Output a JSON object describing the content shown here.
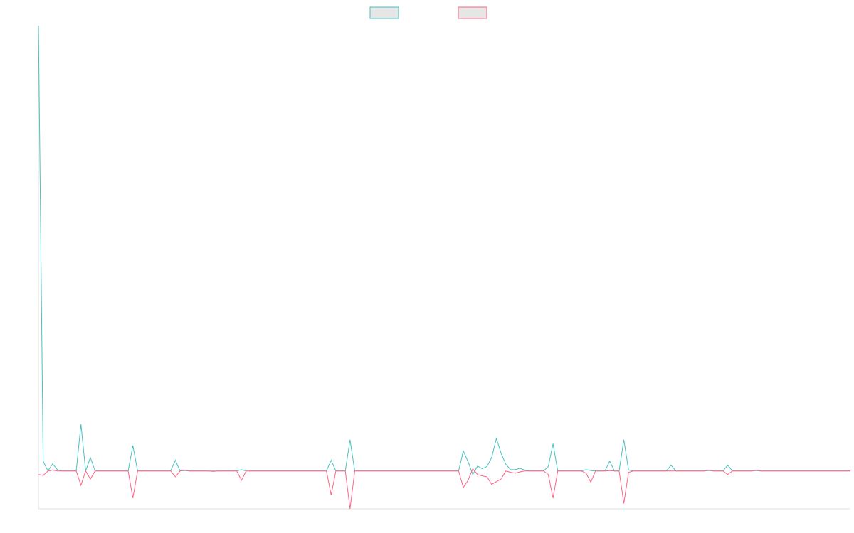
{
  "chart_data": {
    "type": "line",
    "legend": "top",
    "ylim": [
      -8.5,
      100
    ],
    "categories": [
      null,
      null,
      null,
      null,
      null,
      null,
      null,
      null,
      null,
      null,
      null,
      null,
      null,
      null,
      null,
      null,
      null,
      null,
      null,
      null,
      null,
      null,
      null,
      null,
      null,
      null,
      null,
      null,
      null,
      null,
      null,
      null,
      null,
      null,
      null,
      null,
      null,
      null,
      null,
      null,
      null,
      null,
      null,
      null,
      null,
      null,
      null,
      null,
      null,
      null,
      null,
      null,
      null,
      null,
      null,
      null,
      null,
      null,
      null,
      null,
      null,
      null,
      null,
      null,
      null,
      null,
      null,
      null,
      null,
      null,
      null,
      null,
      null,
      null,
      null,
      null,
      null,
      null,
      null,
      null,
      null,
      null,
      null,
      null,
      null,
      null,
      null,
      null,
      null,
      null,
      null,
      null,
      null,
      null,
      null,
      null,
      null,
      null,
      null,
      null,
      null,
      null,
      null,
      null,
      null,
      null,
      null,
      null,
      null,
      null,
      null,
      null,
      null,
      null,
      null,
      null,
      null,
      null,
      null,
      null,
      null,
      null,
      null,
      null,
      null,
      null,
      null,
      null,
      null,
      null,
      null,
      null,
      null,
      null,
      null,
      null,
      null,
      null,
      null,
      null,
      null,
      null,
      null,
      null,
      null,
      null,
      null,
      null,
      null,
      null,
      null,
      null,
      null,
      null,
      null,
      null,
      null,
      null,
      null,
      null,
      null,
      null,
      null,
      null,
      null,
      null,
      null,
      null,
      null,
      null,
      null,
      null,
      null
    ],
    "series": [
      {
        "color": "#4bc0c0",
        "values": [
          100,
          2.2,
          0,
          1.6,
          0.3,
          0,
          0,
          0,
          0,
          10.5,
          0,
          3,
          0,
          0,
          0,
          0,
          0,
          0,
          0,
          0,
          5.7,
          0,
          0,
          0,
          0,
          0,
          0,
          0,
          0,
          2.4,
          0,
          0.1,
          0,
          0,
          0,
          0,
          0,
          0,
          0,
          0,
          0,
          0,
          0,
          0.3,
          0,
          0,
          0,
          0,
          0,
          0,
          0,
          0,
          0,
          0,
          0,
          0,
          0,
          0,
          0,
          0,
          0,
          0,
          2.4,
          0,
          0,
          0,
          7,
          0,
          0,
          0,
          0,
          0,
          0,
          0,
          0,
          0,
          0,
          0,
          0,
          0,
          0,
          0,
          0,
          0,
          0,
          0,
          0,
          0,
          0,
          0,
          4.5,
          2.1,
          -0.8,
          1.1,
          0.5,
          1,
          3,
          7.3,
          4,
          1.5,
          0.3,
          0.3,
          0.6,
          0.2,
          0,
          0,
          0,
          0,
          1,
          6.1,
          0,
          0,
          0,
          0,
          0,
          0,
          0.3,
          0.1,
          0,
          0,
          0,
          2.2,
          0,
          0,
          7,
          0.2,
          0,
          0,
          0,
          0,
          0,
          0,
          0,
          0,
          1.3,
          0,
          0,
          0,
          0,
          0,
          0,
          0,
          0.1,
          0,
          0,
          0,
          1.3,
          0,
          0,
          0,
          0,
          0,
          0.1,
          0,
          0,
          0,
          0,
          0,
          0,
          0,
          0,
          0,
          0,
          0,
          0,
          0,
          0,
          0,
          0,
          0,
          0,
          0,
          0
        ]
      },
      {
        "color": "#ff6384",
        "values": [
          -0.8,
          -1,
          0,
          0.2,
          0,
          0,
          0,
          0,
          0,
          -3.2,
          0,
          -1.8,
          0,
          0,
          0,
          0,
          0,
          0,
          0,
          0,
          -6.1,
          0,
          0,
          0,
          0,
          0,
          0,
          0,
          0,
          -1.3,
          0,
          0.2,
          0,
          0,
          0,
          0,
          0,
          -0.1,
          0,
          0,
          0,
          0,
          0,
          -2.1,
          0,
          0,
          0,
          0,
          0,
          0,
          0,
          0,
          0,
          0,
          0,
          0,
          0,
          0,
          0,
          0,
          0,
          0,
          -5.4,
          0,
          0,
          0,
          -8.5,
          0,
          0,
          0,
          0,
          0,
          0,
          0,
          0,
          0,
          0,
          0,
          0,
          0,
          0,
          0,
          0,
          0,
          0,
          0,
          0,
          0,
          0,
          0,
          -3.7,
          -2.1,
          0.5,
          -0.8,
          -1.1,
          -1.3,
          -3,
          -2.4,
          -1.8,
          0,
          -0.3,
          -0.5,
          -0.2,
          0,
          0,
          0,
          0,
          0,
          -0.8,
          -6.1,
          0,
          0,
          0,
          0,
          0,
          0,
          -0.5,
          -2.5,
          0,
          0,
          0,
          0.1,
          0,
          0,
          -7.3,
          -0.3,
          0,
          0,
          0,
          0,
          0,
          0,
          0,
          0,
          0,
          0,
          0,
          0,
          0,
          0,
          0,
          0,
          0.2,
          0,
          0,
          0,
          -0.8,
          0,
          0,
          0,
          0,
          0,
          0.2,
          0,
          0,
          0,
          0,
          0,
          0,
          0,
          0,
          0,
          0,
          0,
          0,
          0,
          0,
          0,
          0,
          0,
          0,
          0,
          0
        ]
      }
    ]
  }
}
